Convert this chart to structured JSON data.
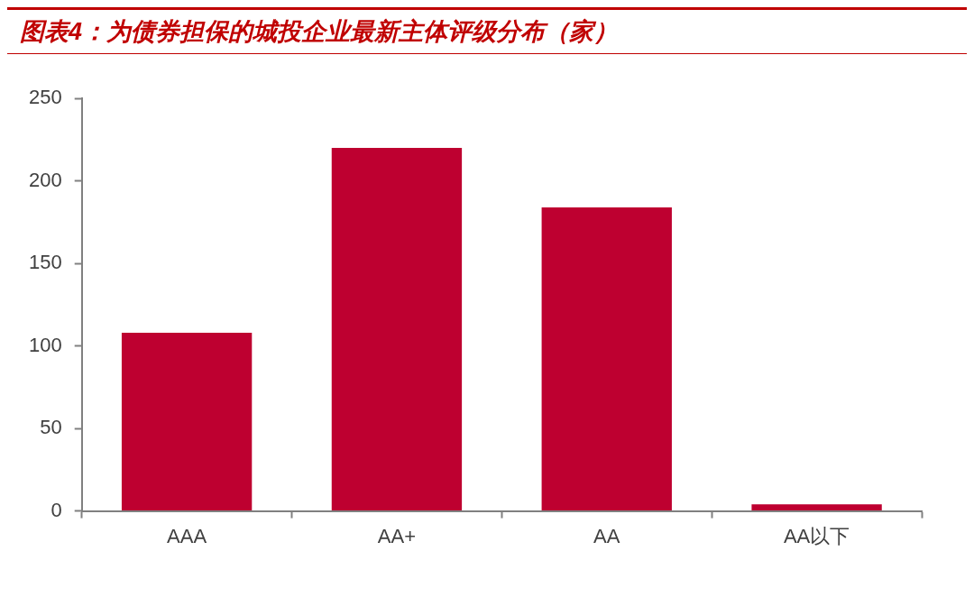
{
  "chart_data": {
    "type": "bar",
    "title": "图表4：为债券担保的城投企业最新主体评级分布（家）",
    "categories": [
      "AAA",
      "AA+",
      "AA",
      "AA以下"
    ],
    "values": [
      108,
      220,
      184,
      4
    ],
    "color": "#be0030",
    "ylim": [
      0,
      250
    ],
    "yticks": [
      0,
      50,
      100,
      150,
      200,
      250
    ],
    "grid": false,
    "legend": false
  }
}
